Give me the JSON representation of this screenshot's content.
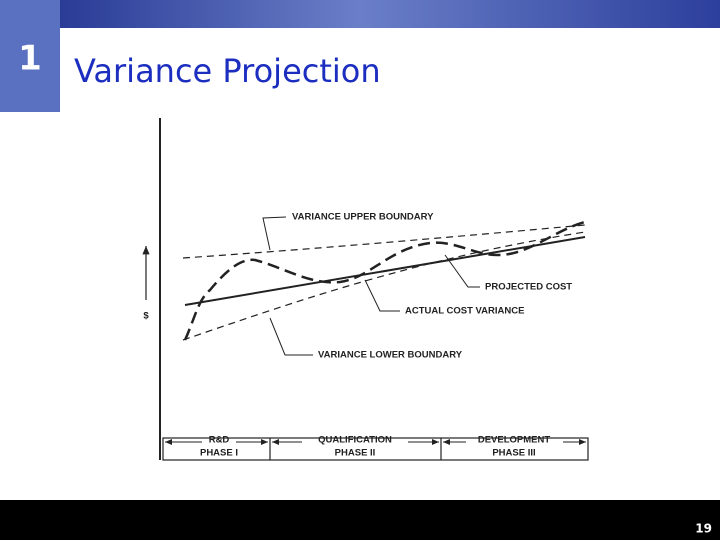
{
  "header": {
    "number": "1",
    "title": "Variance Projection"
  },
  "figure": {
    "axis_label": "$",
    "labels": {
      "upper": "VARIANCE UPPER BOUNDARY",
      "projected": "PROJECTED COST",
      "actual": "ACTUAL COST VARIANCE",
      "lower": "VARIANCE LOWER BOUNDARY"
    },
    "phases": [
      {
        "name": "R&D",
        "phase": "PHASE I"
      },
      {
        "name": "QUALIFICATION",
        "phase": "PHASE II"
      },
      {
        "name": "DEVELOPMENT",
        "phase": "PHASE III"
      }
    ]
  },
  "footer": {
    "page": "19"
  }
}
